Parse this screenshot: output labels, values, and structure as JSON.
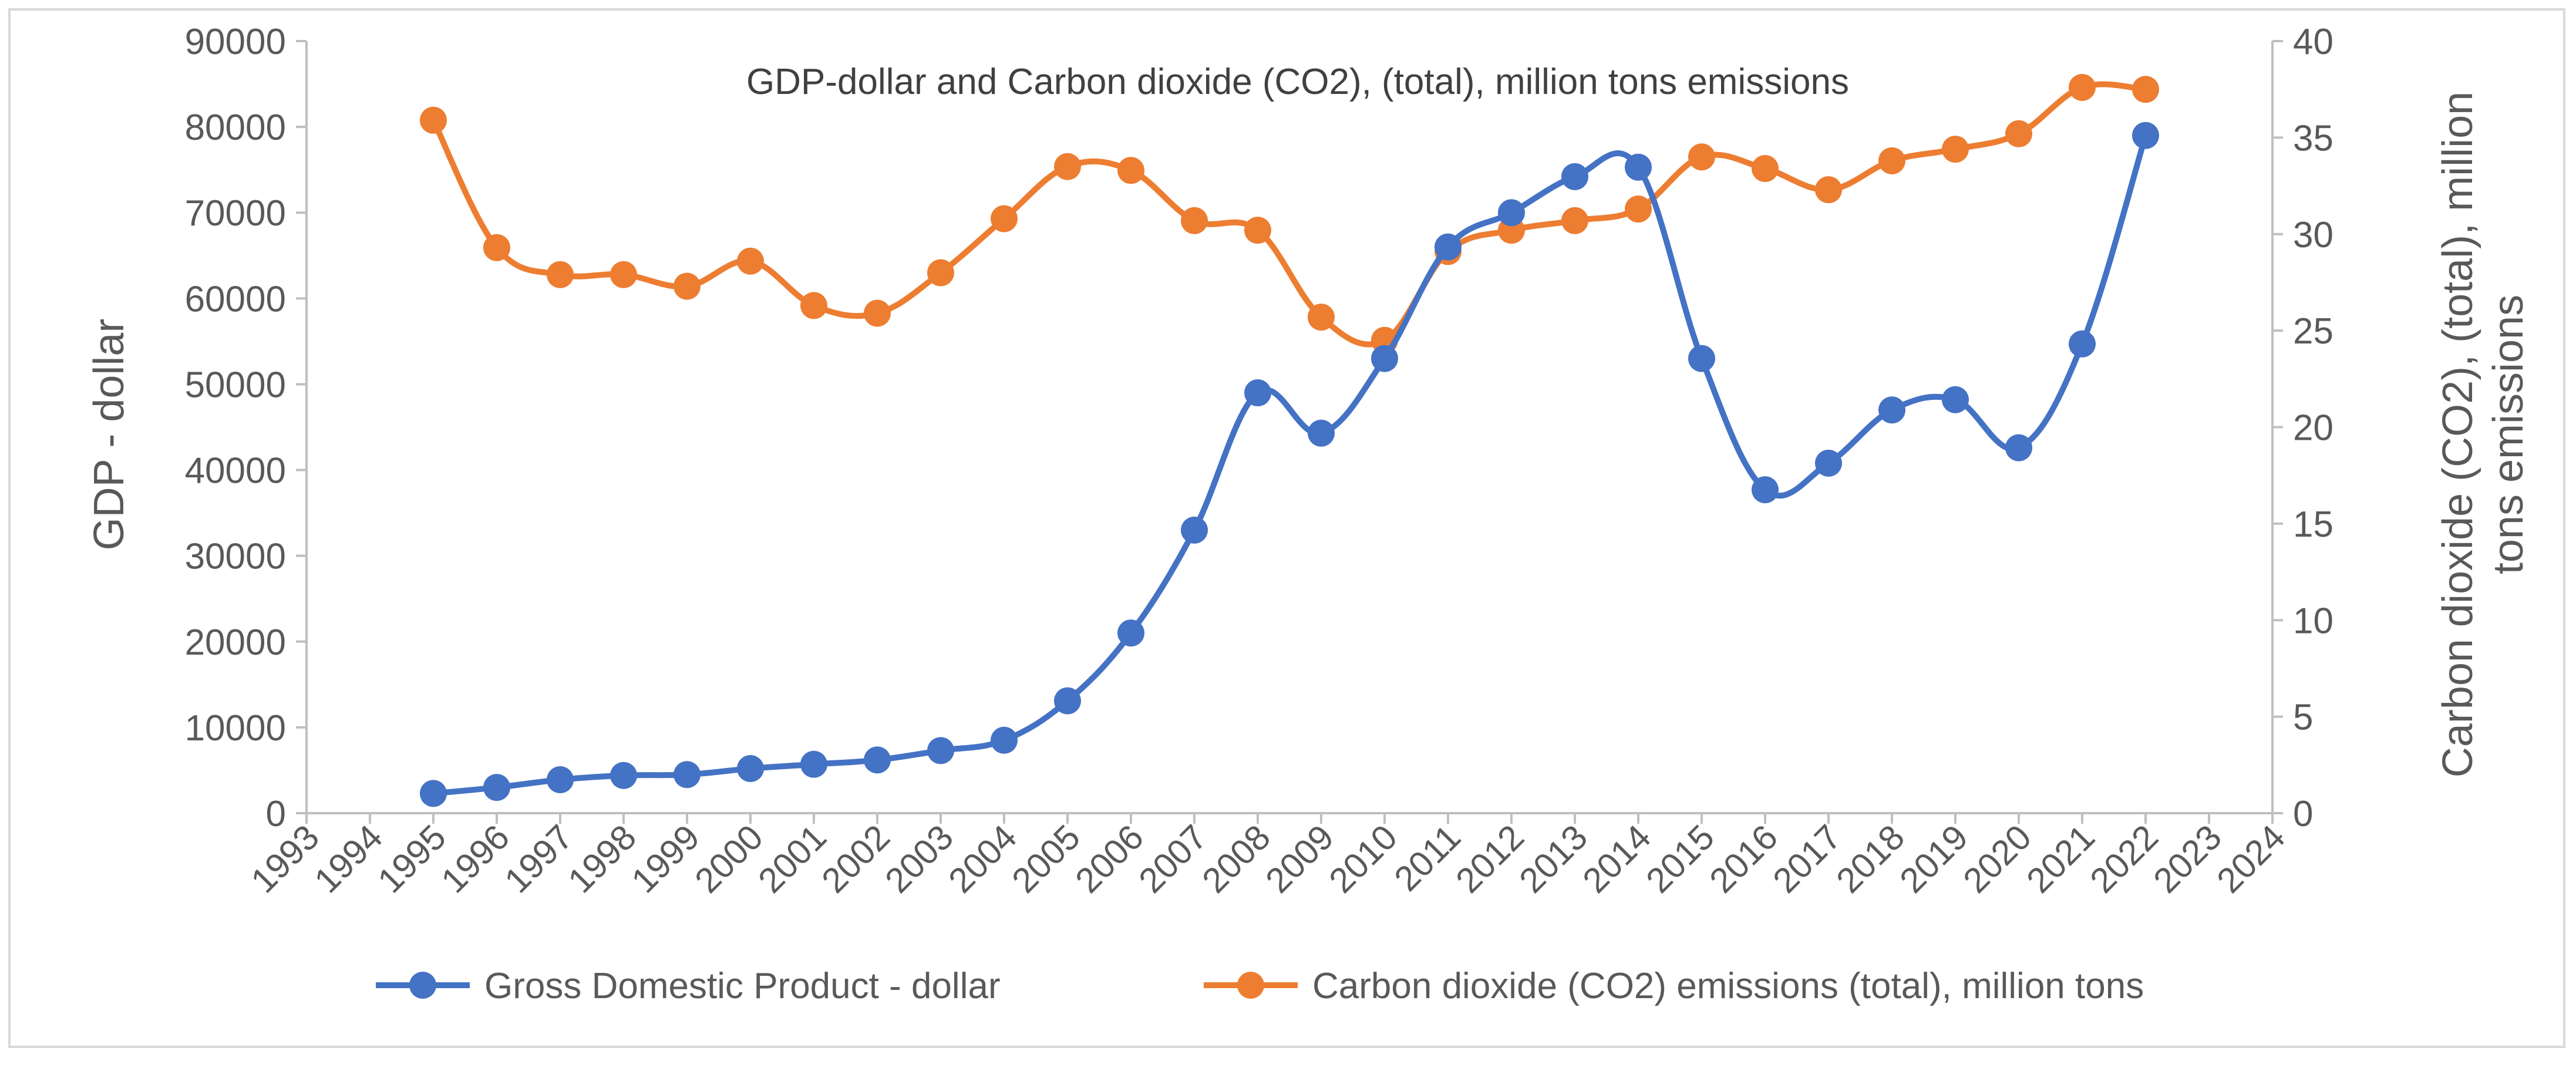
{
  "chart_data": {
    "type": "line",
    "title": "GDP-dollar and Carbon dioxide (CO2), (total), million tons emissions",
    "x_axis": {
      "min": 1993,
      "max": 2024,
      "tick_labels": [
        "1993",
        "1994",
        "1995",
        "1996",
        "1997",
        "1998",
        "1999",
        "2000",
        "2001",
        "2002",
        "2003",
        "2004",
        "2005",
        "2006",
        "2007",
        "2008",
        "2009",
        "2010",
        "2011",
        "2012",
        "2013",
        "2014",
        "2015",
        "2016",
        "2017",
        "2018",
        "2019",
        "2020",
        "2021",
        "2022",
        "2023",
        "2024"
      ]
    },
    "y_axis_left": {
      "label": "GDP - dollar",
      "min": 0,
      "max": 90000,
      "tick_labels": [
        "0",
        "10000",
        "20000",
        "30000",
        "40000",
        "50000",
        "60000",
        "70000",
        "80000",
        "90000"
      ]
    },
    "y_axis_right": {
      "label_line1": "Carbon dioxide (CO2), (total), million",
      "label_line2": "tons emissions",
      "min": 0,
      "max": 40,
      "tick_labels": [
        "0",
        "5",
        "10",
        "15",
        "20",
        "25",
        "30",
        "35",
        "40"
      ]
    },
    "series": [
      {
        "name": "Gross Domestic Product - dollar",
        "axis": "left",
        "color": "#4472C4",
        "x": [
          1995,
          1996,
          1997,
          1998,
          1999,
          2000,
          2001,
          2002,
          2003,
          2004,
          2005,
          2006,
          2007,
          2008,
          2009,
          2010,
          2011,
          2012,
          2013,
          2014,
          2015,
          2016,
          2017,
          2018,
          2019,
          2020,
          2021,
          2022
        ],
        "values": [
          2300,
          3000,
          3900,
          4400,
          4500,
          5200,
          5700,
          6200,
          7300,
          8500,
          13100,
          21000,
          33000,
          49000,
          44300,
          53000,
          66000,
          70000,
          74200,
          75300,
          53000,
          37700,
          40800,
          47000,
          48200,
          42600,
          54700,
          79000
        ]
      },
      {
        "name": "Carbon dioxide (CO2) emissions (total), million tons",
        "axis": "right",
        "color": "#ED7D31",
        "x": [
          1995,
          1996,
          1997,
          1998,
          1999,
          2000,
          2001,
          2002,
          2003,
          2004,
          2005,
          2006,
          2007,
          2008,
          2009,
          2010,
          2011,
          2012,
          2013,
          2014,
          2015,
          2016,
          2017,
          2018,
          2019,
          2020,
          2021,
          2022
        ],
        "values": [
          35.9,
          29.3,
          27.9,
          27.9,
          27.3,
          28.6,
          26.3,
          25.9,
          28.0,
          30.8,
          33.5,
          33.3,
          30.7,
          30.2,
          25.7,
          24.5,
          29.1,
          30.2,
          30.7,
          31.3,
          34.0,
          33.4,
          32.3,
          33.8,
          34.4,
          35.2,
          37.6,
          37.5
        ]
      }
    ],
    "legend_position": "bottom",
    "grid": false
  }
}
